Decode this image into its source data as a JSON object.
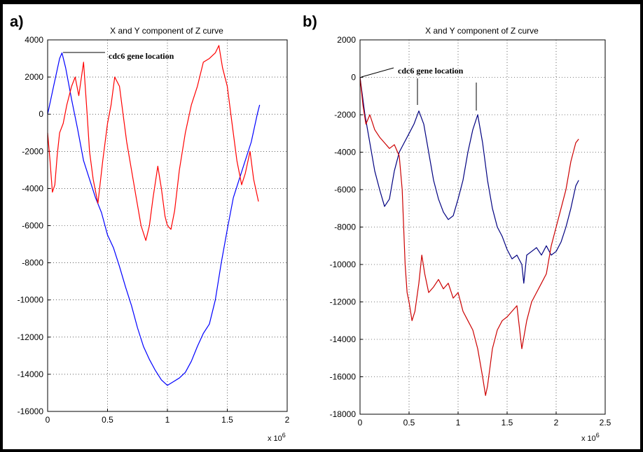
{
  "chart_data": [
    {
      "panel": "a)",
      "type": "line",
      "title": "X and Y component of Z curve",
      "xlim": [
        0,
        2000000
      ],
      "ylim": [
        -16000,
        4000
      ],
      "x_ticks": [
        "0",
        "0.5",
        "1",
        "1.5",
        "2"
      ],
      "y_ticks": [
        "4000",
        "2000",
        "0",
        "-2000",
        "-4000",
        "-6000",
        "-8000",
        "-10000",
        "-12000",
        "-14000",
        "-16000"
      ],
      "x_exponent_label": "x 10",
      "x_exponent_power": "6",
      "grid": true,
      "annotation": "cdc6 gene location",
      "series": [
        {
          "color": "#0000ff",
          "x": [
            0,
            50000,
            100000,
            120000,
            150000,
            200000,
            250000,
            300000,
            350000,
            400000,
            450000,
            500000,
            550000,
            600000,
            650000,
            700000,
            750000,
            800000,
            850000,
            900000,
            950000,
            1000000,
            1050000,
            1100000,
            1150000,
            1200000,
            1250000,
            1300000,
            1350000,
            1400000,
            1450000,
            1500000,
            1550000,
            1600000,
            1650000,
            1700000,
            1750000,
            1770000
          ],
          "y": [
            0,
            1500,
            3000,
            3300,
            2500,
            800,
            -800,
            -2500,
            -3500,
            -4500,
            -5300,
            -6500,
            -7200,
            -8200,
            -9300,
            -10300,
            -11500,
            -12500,
            -13200,
            -13800,
            -14300,
            -14600,
            -14400,
            -14200,
            -13900,
            -13300,
            -12500,
            -11800,
            -11300,
            -10000,
            -8000,
            -6200,
            -4500,
            -3500,
            -2500,
            -1500,
            0,
            500
          ]
        },
        {
          "color": "#ff0000",
          "x": [
            0,
            20000,
            40000,
            60000,
            80000,
            100000,
            130000,
            160000,
            200000,
            230000,
            260000,
            300000,
            330000,
            350000,
            380000,
            420000,
            460000,
            500000,
            530000,
            560000,
            600000,
            630000,
            660000,
            700000,
            740000,
            780000,
            820000,
            850000,
            880000,
            920000,
            950000,
            980000,
            1000000,
            1030000,
            1060000,
            1100000,
            1150000,
            1200000,
            1250000,
            1300000,
            1350000,
            1400000,
            1430000,
            1460000,
            1500000,
            1540000,
            1580000,
            1620000,
            1650000,
            1690000,
            1720000,
            1760000
          ],
          "y": [
            -1000,
            -2500,
            -4200,
            -3800,
            -2200,
            -1000,
            -500,
            500,
            1500,
            2000,
            1000,
            2800,
            0,
            -2000,
            -3500,
            -4800,
            -2500,
            -500,
            500,
            2000,
            1500,
            0,
            -1500,
            -3000,
            -4500,
            -6000,
            -6800,
            -6000,
            -4500,
            -2800,
            -4000,
            -5500,
            -6000,
            -6200,
            -5200,
            -3000,
            -1000,
            500,
            1500,
            2800,
            3000,
            3300,
            3700,
            2500,
            1500,
            -500,
            -2500,
            -3800,
            -3200,
            -2000,
            -3500,
            -4700
          ]
        }
      ]
    },
    {
      "panel": "b)",
      "type": "line",
      "title": "X and Y component of Z curve",
      "xlim": [
        0,
        2500000
      ],
      "ylim": [
        -18000,
        2000
      ],
      "x_ticks": [
        "0",
        "0.5",
        "1",
        "1.5",
        "2",
        "2.5"
      ],
      "y_ticks": [
        "2000",
        "0",
        "-2000",
        "-4000",
        "-6000",
        "-8000",
        "-10000",
        "-12000",
        "-14000",
        "-16000",
        "-18000"
      ],
      "x_exponent_label": "x 10",
      "x_exponent_power": "6",
      "grid": true,
      "annotation": "cdc6 gene location",
      "series": [
        {
          "color": "#000080",
          "x": [
            0,
            50000,
            100000,
            150000,
            200000,
            250000,
            300000,
            350000,
            400000,
            450000,
            500000,
            550000,
            600000,
            650000,
            700000,
            750000,
            800000,
            850000,
            900000,
            950000,
            1000000,
            1050000,
            1100000,
            1150000,
            1200000,
            1250000,
            1300000,
            1350000,
            1400000,
            1450000,
            1500000,
            1550000,
            1600000,
            1650000,
            1670000,
            1700000,
            1750000,
            1800000,
            1850000,
            1900000,
            1950000,
            2000000,
            2050000,
            2100000,
            2150000,
            2200000,
            2230000
          ],
          "y": [
            0,
            -2000,
            -3500,
            -5000,
            -6000,
            -6900,
            -6500,
            -5000,
            -4000,
            -3500,
            -3000,
            -2500,
            -1800,
            -2500,
            -4000,
            -5500,
            -6500,
            -7200,
            -7600,
            -7400,
            -6500,
            -5500,
            -4000,
            -2800,
            -2000,
            -3500,
            -5500,
            -7000,
            -8000,
            -8500,
            -9200,
            -9700,
            -9500,
            -10000,
            -11000,
            -9500,
            -9300,
            -9100,
            -9500,
            -9000,
            -9500,
            -9300,
            -8800,
            -8000,
            -7000,
            -5800,
            -5500
          ]
        },
        {
          "color": "#cc0000",
          "x": [
            0,
            30000,
            60000,
            100000,
            150000,
            200000,
            250000,
            300000,
            350000,
            400000,
            430000,
            460000,
            480000,
            500000,
            530000,
            560000,
            600000,
            630000,
            660000,
            700000,
            750000,
            800000,
            850000,
            900000,
            950000,
            1000000,
            1050000,
            1100000,
            1150000,
            1200000,
            1250000,
            1280000,
            1300000,
            1350000,
            1400000,
            1450000,
            1500000,
            1550000,
            1600000,
            1650000,
            1700000,
            1750000,
            1800000,
            1850000,
            1900000,
            1950000,
            2000000,
            2050000,
            2100000,
            2150000,
            2200000,
            2230000
          ],
          "y": [
            0,
            -1500,
            -2500,
            -2000,
            -2800,
            -3200,
            -3500,
            -3800,
            -3600,
            -4200,
            -6000,
            -10000,
            -11500,
            -12000,
            -13000,
            -12500,
            -11000,
            -9500,
            -10500,
            -11500,
            -11200,
            -10800,
            -11300,
            -11000,
            -11800,
            -11500,
            -12500,
            -13000,
            -13500,
            -14500,
            -16000,
            -17000,
            -16500,
            -14500,
            -13500,
            -13000,
            -12800,
            -12500,
            -12200,
            -14500,
            -13000,
            -12000,
            -11500,
            -11000,
            -10500,
            -9000,
            -8000,
            -7000,
            -6000,
            -4500,
            -3500,
            -3300
          ]
        }
      ]
    }
  ]
}
